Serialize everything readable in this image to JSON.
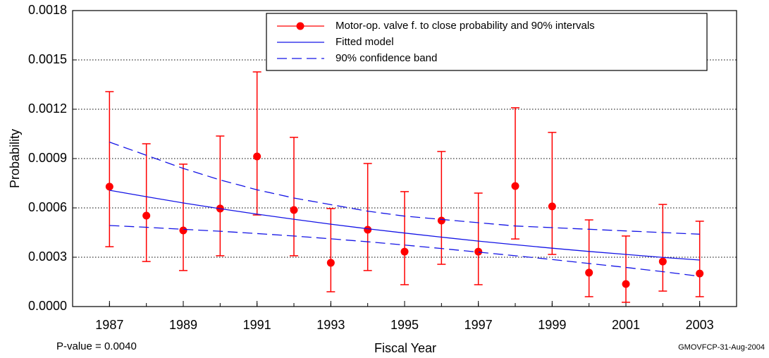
{
  "chart_data": {
    "type": "line",
    "x_label": "Fiscal Year",
    "y_label": "Probability",
    "annotations": [
      "P-value = 0.0040",
      "GMOVFCP-31-Aug-2004"
    ],
    "x": [
      1987,
      1988,
      1989,
      1990,
      1991,
      1992,
      1993,
      1994,
      1995,
      1996,
      1997,
      1998,
      1999,
      2000,
      2001,
      2002,
      2003
    ],
    "xlim": [
      1986,
      2004
    ],
    "xticks": [
      1987,
      1989,
      1991,
      1993,
      1995,
      1997,
      1999,
      2001,
      2003
    ],
    "ylim": [
      0,
      0.0018
    ],
    "yticks": [
      {
        "value": 0,
        "label": "0.0000"
      },
      0.0003,
      0.0006,
      0.0009,
      0.0012,
      0.0015,
      0.0018
    ],
    "grid": true,
    "series": [
      {
        "name": "Motor-op. valve f. to close probability and 90% intervals",
        "color": "#ff0000",
        "values": [
          0.000729,
          0.000553,
          0.000463,
          0.000596,
          0.000913,
          0.000587,
          0.000266,
          0.000467,
          0.000334,
          0.000523,
          0.000334,
          0.000733,
          0.000609,
          0.000206,
          0.000137,
          0.000274,
          0.000201
        ],
        "lower": [
          0.000364,
          0.000274,
          0.000219,
          0.000309,
          0.000557,
          0.000309,
          9e-05,
          0.000219,
          0.000133,
          0.000257,
          0.000133,
          0.000411,
          0.000317,
          6e-05,
          2.6e-05,
          9.4e-05,
          6e-05
        ],
        "upper": [
          0.001307,
          0.00099,
          0.000866,
          0.001037,
          0.001427,
          0.001029,
          0.000596,
          0.00087,
          0.000699,
          0.000943,
          0.00069,
          0.001209,
          0.001059,
          0.000527,
          0.000429,
          0.000621,
          0.000519
        ]
      },
      {
        "name": "Fitted model",
        "color": "#1414e6",
        "values": [
          0.000707,
          0.000668,
          0.00063,
          0.000595,
          0.000562,
          0.000531,
          0.000501,
          0.000473,
          0.000447,
          0.000422,
          0.000398,
          0.000376,
          0.000355,
          0.000335,
          0.000317,
          0.000299,
          0.000283
        ]
      },
      {
        "name": "90% confidence band",
        "color": "#1414e6",
        "dash": true,
        "lower": [
          0.000493,
          0.000482,
          0.00047,
          0.000458,
          0.000444,
          0.000429,
          0.000412,
          0.000394,
          0.000374,
          0.000353,
          0.000331,
          0.000309,
          0.000286,
          0.000262,
          0.000238,
          0.000212,
          0.000184
        ],
        "upper": [
          0.001,
          0.00092,
          0.00084,
          0.00077,
          0.00071,
          0.00066,
          0.00062,
          0.00058,
          0.00055,
          0.00053,
          0.00051,
          0.00049,
          0.00048,
          0.00047,
          0.00046,
          0.00045,
          0.00044
        ]
      }
    ]
  }
}
